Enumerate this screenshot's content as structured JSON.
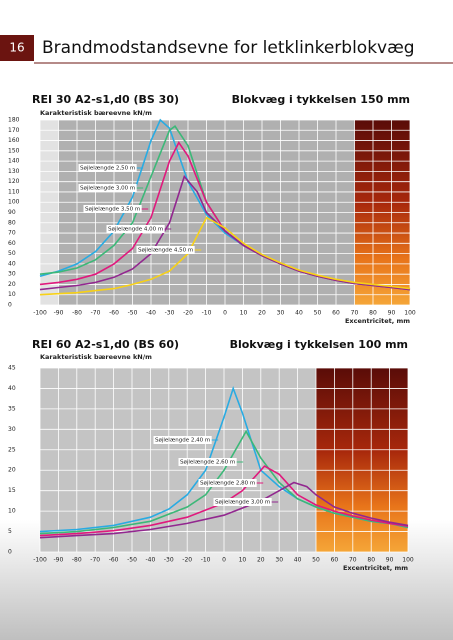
{
  "page_number": "16",
  "title": "Brandmodstandsevne for letklinkerblokvæg",
  "chart_data": [
    {
      "type": "line",
      "title": "REI 30 A2-s1,d0 (BS 30)",
      "subtitle": "Blokvæg i tykkelsen 150 mm",
      "ylabel": "Karakteristisk bæreevne kN/m",
      "xlabel": "Excentricitet, mm",
      "xlim": [
        -100,
        100
      ],
      "ylim": [
        0,
        180
      ],
      "xticks": [
        -100,
        -90,
        -80,
        -70,
        -60,
        -50,
        -40,
        -30,
        -20,
        -10,
        0,
        10,
        20,
        30,
        40,
        50,
        60,
        70,
        80,
        90,
        100
      ],
      "yticks": [
        0,
        10,
        20,
        30,
        40,
        50,
        60,
        70,
        80,
        90,
        100,
        110,
        120,
        130,
        140,
        150,
        160,
        170,
        180
      ],
      "grid": true,
      "series": [
        {
          "name": "Søjlelængde 2,50 m",
          "color": "#29abe2",
          "x": [
            -100,
            -90,
            -80,
            -70,
            -60,
            -50,
            -40,
            -35,
            -30,
            -20,
            -10,
            0,
            10,
            20,
            30,
            40,
            50,
            60,
            70,
            80,
            90,
            100
          ],
          "values": [
            28,
            33,
            40,
            52,
            72,
            105,
            160,
            180,
            172,
            120,
            88,
            70,
            58,
            48,
            40,
            33,
            28,
            24,
            21,
            19,
            17,
            15
          ]
        },
        {
          "name": "Søjlelængde 3,00 m",
          "color": "#3cb878",
          "x": [
            -100,
            -90,
            -80,
            -70,
            -60,
            -50,
            -40,
            -30,
            -27,
            -20,
            -10,
            0,
            10,
            20,
            30,
            40,
            50,
            60,
            70,
            80,
            90,
            100
          ],
          "values": [
            30,
            32,
            36,
            44,
            58,
            80,
            125,
            170,
            174,
            155,
            100,
            72,
            58,
            48,
            40,
            33,
            28,
            24,
            21,
            19,
            17,
            15
          ]
        },
        {
          "name": "Søjlelængde 3,50 m",
          "color": "#e0197d",
          "x": [
            -100,
            -90,
            -80,
            -70,
            -60,
            -50,
            -40,
            -30,
            -25,
            -20,
            -10,
            0,
            10,
            20,
            30,
            40,
            50,
            60,
            70,
            80,
            90,
            100
          ],
          "values": [
            20,
            22,
            25,
            30,
            40,
            55,
            85,
            140,
            158,
            145,
            100,
            72,
            58,
            48,
            40,
            33,
            28,
            24,
            21,
            19,
            17,
            15
          ]
        },
        {
          "name": "Søjlelængde 4,00 m",
          "color": "#92278f",
          "x": [
            -100,
            -90,
            -80,
            -70,
            -60,
            -50,
            -40,
            -30,
            -22,
            -15,
            -10,
            0,
            10,
            20,
            30,
            40,
            50,
            60,
            70,
            80,
            90,
            100
          ],
          "values": [
            15,
            17,
            19,
            22,
            27,
            35,
            50,
            80,
            125,
            110,
            90,
            72,
            58,
            48,
            40,
            33,
            28,
            24,
            21,
            19,
            17,
            15
          ]
        },
        {
          "name": "Søjlelængde 4,50 m",
          "color": "#f7d117",
          "x": [
            -100,
            -90,
            -80,
            -70,
            -60,
            -50,
            -40,
            -30,
            -20,
            -10,
            0,
            10,
            20,
            30,
            40,
            50,
            60,
            70,
            80,
            90,
            100
          ],
          "values": [
            10,
            11,
            12,
            14,
            16,
            20,
            25,
            33,
            50,
            85,
            75,
            60,
            49,
            41,
            34,
            29,
            25,
            22,
            20,
            18,
            16
          ]
        }
      ]
    },
    {
      "type": "line",
      "title": "REI 60 A2-s1,d0 (BS 60)",
      "subtitle": "Blokvæg i tykkelsen 100 mm",
      "ylabel": "Karakteristisk bæreevne kN/m",
      "xlabel": "Excentricitet, mm",
      "xlim": [
        -100,
        100
      ],
      "ylim": [
        0,
        45
      ],
      "xticks": [
        -100,
        -90,
        -80,
        -70,
        -60,
        -50,
        -40,
        -30,
        -20,
        -10,
        0,
        10,
        20,
        30,
        40,
        50,
        60,
        70,
        80,
        90,
        100
      ],
      "yticks": [
        0,
        5,
        10,
        15,
        20,
        25,
        30,
        35,
        40,
        45
      ],
      "grid": true,
      "series": [
        {
          "name": "Søjlelængde 2,40 m",
          "color": "#29abe2",
          "x": [
            -100,
            -80,
            -60,
            -40,
            -30,
            -20,
            -10,
            0,
            5,
            10,
            20,
            30,
            40,
            50,
            60,
            70,
            80,
            90,
            100
          ],
          "values": [
            5,
            5.5,
            6.5,
            8.5,
            10.5,
            14,
            20,
            33,
            40,
            34,
            20,
            16,
            13,
            11,
            9.5,
            8.5,
            7.5,
            7,
            6
          ]
        },
        {
          "name": "Søjlelængde 2,60 m",
          "color": "#3cb878",
          "x": [
            -100,
            -80,
            -60,
            -40,
            -20,
            -10,
            0,
            12,
            20,
            30,
            40,
            50,
            60,
            70,
            80,
            90,
            100
          ],
          "values": [
            4.5,
            5,
            6,
            7.5,
            11,
            14,
            20,
            29.5,
            23,
            17,
            13,
            11,
            9.5,
            8.5,
            7.5,
            7,
            6
          ]
        },
        {
          "name": "Søjlelængde 2,80 m",
          "color": "#e0197d",
          "x": [
            -100,
            -80,
            -60,
            -40,
            -20,
            0,
            10,
            22,
            30,
            40,
            50,
            60,
            70,
            80,
            90,
            100
          ],
          "values": [
            4,
            4.5,
            5.2,
            6.5,
            8.5,
            12,
            15,
            21,
            19,
            14,
            11.5,
            10,
            8.8,
            7.8,
            7,
            6.3
          ]
        },
        {
          "name": "Søjlelængde 3,00 m",
          "color": "#92278f",
          "x": [
            -100,
            -80,
            -60,
            -40,
            -20,
            0,
            20,
            30,
            38,
            45,
            50,
            60,
            70,
            80,
            90,
            100
          ],
          "values": [
            3.5,
            4,
            4.5,
            5.5,
            7,
            9,
            12.5,
            15,
            17,
            16,
            14,
            11,
            9.5,
            8.3,
            7.3,
            6.5
          ]
        }
      ]
    }
  ]
}
